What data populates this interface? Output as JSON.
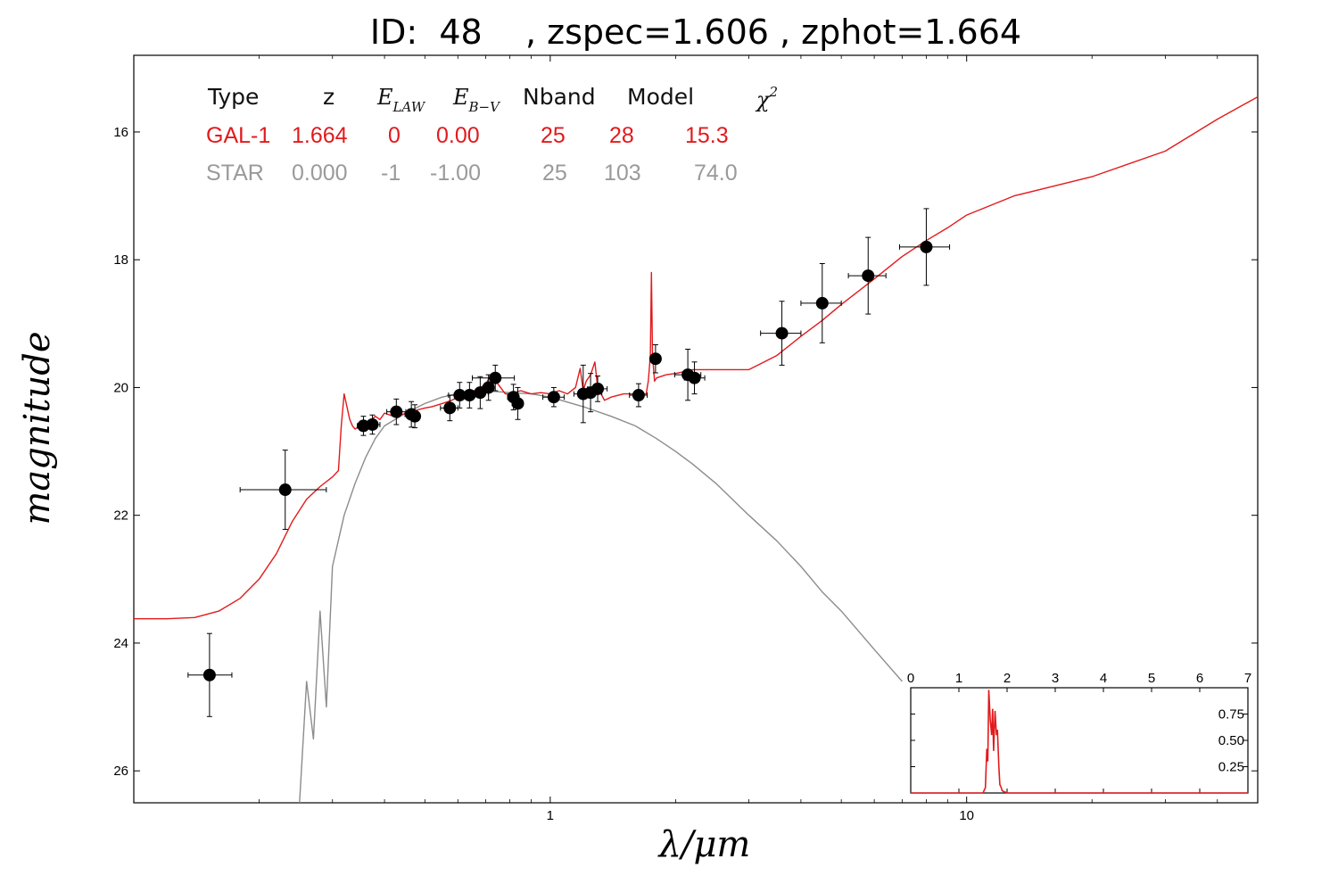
{
  "title": "ID:  48    , zspec=1.606 , zphot=1.664",
  "colors": {
    "galaxy": "#e21a1c",
    "star": "#8c8c8c",
    "points": "#000000"
  },
  "table": {
    "headers": {
      "type": "Type",
      "z": "z",
      "elaw": "E",
      "elaw_sub": "LAW",
      "ebv": "E",
      "ebv_sub": "B−V",
      "nband": "Nband",
      "model": "Model",
      "chi2": "χ",
      "chi2_sup": "2"
    },
    "rows": [
      {
        "type": "GAL-1",
        "z": "1.664",
        "elaw": "0",
        "ebv": "0.00",
        "nband": "25",
        "model": "28",
        "chi2": "15.3",
        "color": "#e21a1c"
      },
      {
        "type": "STAR",
        "z": "0.000",
        "elaw": "-1",
        "ebv": "-1.00",
        "nband": "25",
        "model": "103",
        "chi2": "74.0",
        "color": "#9a9a9a"
      }
    ]
  },
  "chart_data": [
    {
      "type": "scatter",
      "xlabel": "λ/μm",
      "ylabel": "magnitude",
      "xscale": "log",
      "xlim": [
        0.1,
        50
      ],
      "ylim": [
        26.5,
        14.8
      ],
      "yticks": [
        16,
        18,
        20,
        22,
        24,
        26
      ],
      "xticks": [
        1,
        10
      ],
      "points": [
        {
          "x": 0.152,
          "y": 24.5,
          "xerr": [
            0.135,
            0.172
          ],
          "yerr": 0.65
        },
        {
          "x": 0.231,
          "y": 21.6,
          "xerr": [
            0.18,
            0.29
          ],
          "yerr": 0.62
        },
        {
          "x": 0.356,
          "y": 20.6,
          "xerr": [
            0.344,
            0.368
          ],
          "yerr": 0.15
        },
        {
          "x": 0.374,
          "y": 20.58,
          "xerr": [
            0.36,
            0.39
          ],
          "yerr": 0.15
        },
        {
          "x": 0.427,
          "y": 20.38,
          "xerr": [
            0.405,
            0.45
          ],
          "yerr": 0.2
        },
        {
          "x": 0.464,
          "y": 20.42,
          "xerr": [
            0.448,
            0.48
          ],
          "yerr": 0.2
        },
        {
          "x": 0.473,
          "y": 20.45,
          "xerr": [
            0.46,
            0.485
          ],
          "yerr": 0.18
        },
        {
          "x": 0.574,
          "y": 20.32,
          "xerr": [
            0.545,
            0.6
          ],
          "yerr": 0.2
        },
        {
          "x": 0.606,
          "y": 20.12,
          "xerr": [
            0.57,
            0.64
          ],
          "yerr": 0.2
        },
        {
          "x": 0.64,
          "y": 20.12,
          "xerr": [
            0.62,
            0.66
          ],
          "yerr": 0.2
        },
        {
          "x": 0.679,
          "y": 20.08,
          "xerr": [
            0.65,
            0.71
          ],
          "yerr": 0.25
        },
        {
          "x": 0.711,
          "y": 20.0,
          "xerr": [
            0.7,
            0.72
          ],
          "yerr": 0.2
        },
        {
          "x": 0.738,
          "y": 19.85,
          "xerr": [
            0.65,
            0.82
          ],
          "yerr": 0.2
        },
        {
          "x": 0.816,
          "y": 20.15,
          "xerr": [
            0.79,
            0.84
          ],
          "yerr": 0.2
        },
        {
          "x": 0.836,
          "y": 20.25,
          "xerr": [
            0.81,
            0.86
          ],
          "yerr": 0.25
        },
        {
          "x": 1.02,
          "y": 20.15,
          "xerr": [
            0.96,
            1.08
          ],
          "yerr": 0.15
        },
        {
          "x": 1.2,
          "y": 20.1,
          "xerr": [
            1.14,
            1.26
          ],
          "yerr": 0.45
        },
        {
          "x": 1.25,
          "y": 20.08,
          "xerr": [
            1.17,
            1.33
          ],
          "yerr": 0.3
        },
        {
          "x": 1.3,
          "y": 20.02,
          "xerr": [
            1.23,
            1.37
          ],
          "yerr": 0.2
        },
        {
          "x": 1.63,
          "y": 20.12,
          "xerr": [
            1.55,
            1.71
          ],
          "yerr": 0.18
        },
        {
          "x": 1.79,
          "y": 19.55,
          "xerr": [
            1.76,
            1.82
          ],
          "yerr": 0.22
        },
        {
          "x": 2.14,
          "y": 19.8,
          "xerr": [
            1.99,
            2.3
          ],
          "yerr": 0.4
        },
        {
          "x": 2.22,
          "y": 19.85,
          "xerr": [
            2.1,
            2.35
          ],
          "yerr": 0.25
        },
        {
          "x": 3.6,
          "y": 19.15,
          "xerr": [
            3.2,
            4.0
          ],
          "yerr": 0.5
        },
        {
          "x": 4.5,
          "y": 18.68,
          "xerr": [
            4.0,
            5.0
          ],
          "yerr": 0.62
        },
        {
          "x": 5.8,
          "y": 18.25,
          "xerr": [
            5.2,
            6.4
          ],
          "yerr": 0.6
        },
        {
          "x": 8.0,
          "y": 17.8,
          "xerr": [
            6.9,
            9.1
          ],
          "yerr": 0.6
        }
      ],
      "series": [
        {
          "name": "GAL-1",
          "color": "#e21a1c",
          "x": [
            0.1,
            0.12,
            0.14,
            0.16,
            0.18,
            0.2,
            0.22,
            0.24,
            0.26,
            0.28,
            0.3,
            0.31,
            0.315,
            0.32,
            0.33,
            0.335,
            0.34,
            0.345,
            0.35,
            0.355,
            0.36,
            0.37,
            0.38,
            0.39,
            0.4,
            0.42,
            0.44,
            0.46,
            0.48,
            0.5,
            0.52,
            0.55,
            0.58,
            0.6,
            0.62,
            0.64,
            0.66,
            0.68,
            0.7,
            0.72,
            0.74,
            0.76,
            0.78,
            0.8,
            0.85,
            0.9,
            0.95,
            1.0,
            1.05,
            1.1,
            1.15,
            1.18,
            1.2,
            1.22,
            1.25,
            1.28,
            1.3,
            1.35,
            1.4,
            1.5,
            1.6,
            1.7,
            1.72,
            1.74,
            1.75,
            1.76,
            1.78,
            1.8,
            1.9,
            2.0,
            2.2,
            2.5,
            3.0,
            3.5,
            4.0,
            4.5,
            5.0,
            6.0,
            7.0,
            8.0,
            9.0,
            10.0,
            13.0,
            20.0,
            30.0,
            40.0,
            50.0
          ],
          "y": [
            23.62,
            23.62,
            23.6,
            23.5,
            23.3,
            23.0,
            22.6,
            22.1,
            21.75,
            21.55,
            21.4,
            21.3,
            20.6,
            20.1,
            20.5,
            20.6,
            20.65,
            20.62,
            20.6,
            20.58,
            20.55,
            20.52,
            20.45,
            20.5,
            20.4,
            20.45,
            20.42,
            20.4,
            20.35,
            20.32,
            20.3,
            20.25,
            20.2,
            20.15,
            20.1,
            20.05,
            20.05,
            20.0,
            19.95,
            19.8,
            19.9,
            20.0,
            20.1,
            20.1,
            20.05,
            20.1,
            20.08,
            20.1,
            20.05,
            20.1,
            20.0,
            19.7,
            20.05,
            19.9,
            19.8,
            19.6,
            20.0,
            20.2,
            20.15,
            20.1,
            20.1,
            20.1,
            19.9,
            19.5,
            18.2,
            19.5,
            19.9,
            19.85,
            19.8,
            19.78,
            19.72,
            19.72,
            19.72,
            19.5,
            19.2,
            18.95,
            18.7,
            18.3,
            17.95,
            17.7,
            17.5,
            17.3,
            17.0,
            16.7,
            16.3,
            15.8,
            15.45
          ]
        },
        {
          "name": "STAR",
          "color": "#8c8c8c",
          "x": [
            0.25,
            0.26,
            0.27,
            0.28,
            0.29,
            0.3,
            0.32,
            0.34,
            0.36,
            0.38,
            0.4,
            0.45,
            0.5,
            0.55,
            0.6,
            0.65,
            0.7,
            0.8,
            0.9,
            1.0,
            1.2,
            1.4,
            1.6,
            1.8,
            2.0,
            2.2,
            2.5,
            3.0,
            3.5,
            4.0,
            4.5,
            5.0,
            6.0,
            7.0
          ],
          "y": [
            26.5,
            24.6,
            25.5,
            23.5,
            25.0,
            22.8,
            22.0,
            21.5,
            21.1,
            20.8,
            20.6,
            20.4,
            20.25,
            20.15,
            20.1,
            20.08,
            20.05,
            20.08,
            20.1,
            20.15,
            20.3,
            20.45,
            20.6,
            20.8,
            21.0,
            21.2,
            21.5,
            22.0,
            22.4,
            22.8,
            23.2,
            23.5,
            24.1,
            24.6
          ]
        }
      ]
    },
    {
      "type": "line",
      "xlim": [
        0,
        7
      ],
      "ylim": [
        0,
        1.0
      ],
      "xticks": [
        0,
        1,
        2,
        3,
        4,
        5,
        6,
        7
      ],
      "yticks": [
        0.25,
        0.5,
        0.75
      ],
      "ytick_labels": [
        "0.25",
        "0.50",
        "0.75"
      ],
      "series": [
        {
          "color": "#e21a1c",
          "x": [
            0,
            1.5,
            1.55,
            1.58,
            1.6,
            1.62,
            1.65,
            1.68,
            1.7,
            1.72,
            1.75,
            1.78,
            1.8,
            1.83,
            1.85,
            1.88,
            1.9,
            2.0,
            7.0
          ],
          "y": [
            0,
            0,
            0.05,
            0.42,
            0.3,
            0.98,
            0.7,
            0.55,
            0.8,
            0.4,
            0.78,
            0.55,
            0.6,
            0.25,
            0.08,
            0.05,
            0.02,
            0,
            0
          ]
        }
      ]
    }
  ]
}
